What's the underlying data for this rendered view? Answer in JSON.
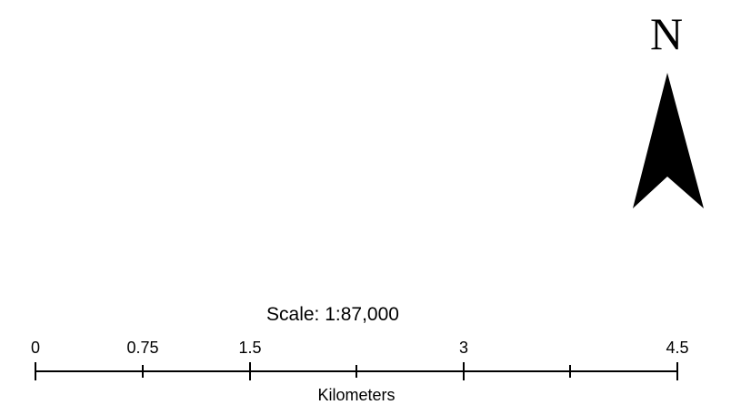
{
  "north_arrow": {
    "letter": "N",
    "color": "#000000"
  },
  "scale": {
    "ratio_text": "Scale: 1:87,000",
    "units": "Kilometers",
    "tick_labels": [
      "0",
      "0.75",
      "1.5",
      "3",
      "4.5"
    ],
    "max_value": 4.5
  }
}
